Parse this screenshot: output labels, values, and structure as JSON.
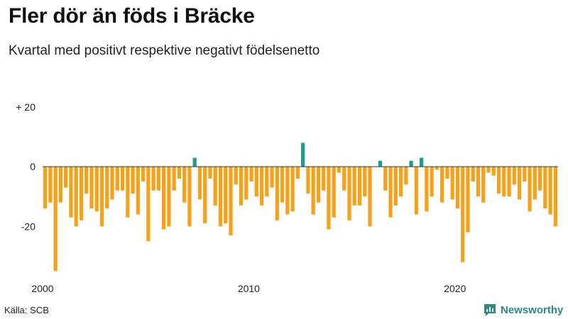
{
  "title": "Fler dör än föds i Bräcke",
  "subtitle": "Kvartal med positivt respektive negativt födelsenetto",
  "source": "Källa: SCB",
  "brand": "Newsworthy",
  "colors": {
    "negative": "#f7a11a",
    "positive": "#1e9e8a",
    "brand": "#2d8a80"
  },
  "chart_data": {
    "type": "bar",
    "title": "Fler dör än föds i Bräcke",
    "subtitle": "Kvartal med positivt respektive negativt födelsenetto",
    "xlabel": "",
    "ylabel": "",
    "start_year": 2000,
    "ylim": [
      -38,
      25
    ],
    "y_ticks": [
      {
        "value": 20,
        "label": "+ 20"
      },
      {
        "value": 0,
        "label": "0"
      },
      {
        "value": -20,
        "label": "-20"
      }
    ],
    "x_ticks": [
      {
        "value": 2000,
        "label": "2000"
      },
      {
        "value": 2010,
        "label": "2010"
      },
      {
        "value": 2020,
        "label": "2020"
      }
    ],
    "grid": false,
    "legend": "none",
    "values": [
      -14,
      -12,
      -35,
      -12,
      -7,
      -17,
      -20,
      -18,
      -9,
      -14,
      -15,
      -20,
      -14,
      -11,
      -8,
      -8,
      -17,
      -9,
      -16,
      -5,
      -25,
      -8,
      -8,
      -21,
      -20,
      -8,
      -4,
      -12,
      -20,
      3,
      -11,
      -19,
      -4,
      -13,
      -20,
      -19,
      -23,
      -6,
      -13,
      -11,
      -5,
      -10,
      -13,
      -10,
      -7,
      -18,
      -12,
      -16,
      -15,
      -4,
      8,
      -9,
      -16,
      -12,
      -8,
      -21,
      -17,
      -2,
      -8,
      -18,
      -13,
      -13,
      -10,
      -20,
      0,
      2,
      -8,
      -17,
      -13,
      -10,
      -6,
      2,
      -16,
      3,
      -15,
      -10,
      -1,
      -12,
      -4,
      -11,
      -14,
      -32,
      -22,
      -5,
      -10,
      -12,
      -2,
      -3,
      -9,
      -10,
      -10,
      -6,
      -11,
      -5,
      -15,
      -11,
      -8,
      -14,
      -16,
      -20
    ]
  }
}
